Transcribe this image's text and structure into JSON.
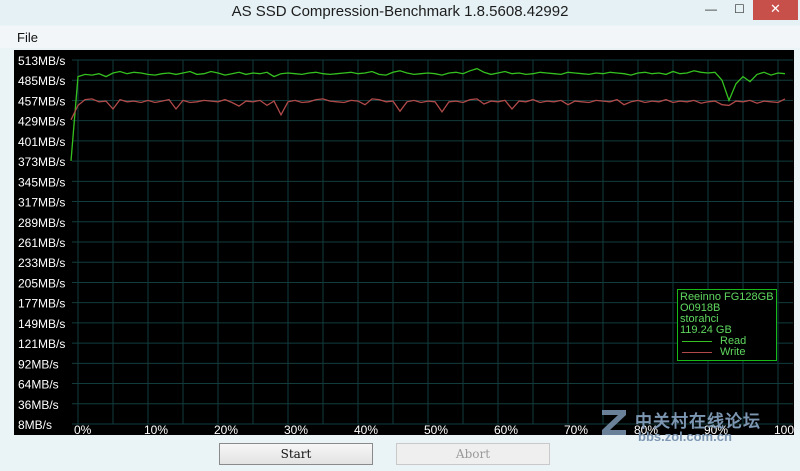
{
  "window": {
    "title": "AS SSD Compression-Benchmark 1.8.5608.42992",
    "controls": {
      "minimize": "—",
      "maximize": "☐",
      "close": "✕"
    }
  },
  "menu": {
    "file": "File"
  },
  "buttons": {
    "start": "Start",
    "abort": "Abort"
  },
  "info": {
    "model": "Reeinno FG128GB",
    "firmware": "O0918B",
    "driver": "storahci",
    "capacity": "119.24 GB",
    "legend_read": "Read",
    "legend_write": "Write"
  },
  "watermark": {
    "text": "中关村在线论坛",
    "url": "bbs.zol.com.cn"
  },
  "colors": {
    "read": "#34c11f",
    "write": "#b04a4a",
    "grid": "#123c3c",
    "axis_text": "#ffffff",
    "chart_bg": "#000000"
  },
  "chart_data": {
    "type": "line",
    "y_tick_labels": [
      "513MB/s",
      "485MB/s",
      "457MB/s",
      "429MB/s",
      "401MB/s",
      "373MB/s",
      "345MB/s",
      "317MB/s",
      "289MB/s",
      "261MB/s",
      "233MB/s",
      "205MB/s",
      "177MB/s",
      "149MB/s",
      "121MB/s",
      "92MB/s",
      "64MB/s",
      "36MB/s",
      "8MB/s"
    ],
    "x_tick_labels": [
      "0%",
      "10%",
      "20%",
      "30%",
      "40%",
      "50%",
      "60%",
      "70%",
      "80%",
      "90%",
      "100%"
    ],
    "ylim": [
      8,
      513
    ],
    "xlim": [
      0,
      100
    ],
    "grid": true,
    "legend_position": "bottom-right",
    "series": [
      {
        "name": "Read",
        "x": [
          -1,
          0,
          1,
          2,
          3,
          4,
          5,
          6,
          7,
          8,
          9,
          10,
          11,
          12,
          13,
          14,
          15,
          16,
          17,
          18,
          19,
          20,
          21,
          22,
          23,
          24,
          25,
          26,
          27,
          28,
          29,
          30,
          31,
          32,
          33,
          34,
          35,
          36,
          37,
          38,
          39,
          40,
          41,
          42,
          43,
          44,
          45,
          46,
          47,
          48,
          49,
          50,
          51,
          52,
          53,
          54,
          55,
          56,
          57,
          58,
          59,
          60,
          61,
          62,
          63,
          64,
          65,
          66,
          67,
          68,
          69,
          70,
          71,
          72,
          73,
          74,
          75,
          76,
          77,
          78,
          79,
          80,
          81,
          82,
          83,
          84,
          85,
          86,
          87,
          88,
          89,
          90,
          91,
          92,
          93,
          94,
          95,
          96,
          97,
          98,
          99,
          100,
          101
        ],
        "y": [
          373,
          490,
          493,
          492,
          494,
          490,
          495,
          497,
          494,
          496,
          495,
          493,
          492,
          494,
          495,
          493,
          495,
          497,
          493,
          494,
          497,
          495,
          492,
          494,
          496,
          493,
          495,
          494,
          496,
          490,
          494,
          495,
          494,
          493,
          495,
          496,
          494,
          493,
          494,
          495,
          496,
          494,
          495,
          497,
          493,
          492,
          496,
          498,
          495,
          493,
          494,
          495,
          494,
          492,
          495,
          496,
          494,
          498,
          501,
          496,
          493,
          495,
          497,
          494,
          495,
          493,
          494,
          496,
          495,
          494,
          493,
          496,
          495,
          494,
          493,
          495,
          494,
          496,
          495,
          494,
          492,
          495,
          496,
          494,
          495,
          493,
          497,
          494,
          495,
          498,
          496,
          495,
          496,
          485,
          457,
          480,
          490,
          483,
          493,
          496,
          492,
          495,
          494
        ]
      },
      {
        "name": "Write",
        "x": [
          -1,
          0,
          1,
          2,
          3,
          4,
          5,
          6,
          7,
          8,
          9,
          10,
          11,
          12,
          13,
          14,
          15,
          16,
          17,
          18,
          19,
          20,
          21,
          22,
          23,
          24,
          25,
          26,
          27,
          28,
          29,
          30,
          31,
          32,
          33,
          34,
          35,
          36,
          37,
          38,
          39,
          40,
          41,
          42,
          43,
          44,
          45,
          46,
          47,
          48,
          49,
          50,
          51,
          52,
          53,
          54,
          55,
          56,
          57,
          58,
          59,
          60,
          61,
          62,
          63,
          64,
          65,
          66,
          67,
          68,
          69,
          70,
          71,
          72,
          73,
          74,
          75,
          76,
          77,
          78,
          79,
          80,
          81,
          82,
          83,
          84,
          85,
          86,
          87,
          88,
          89,
          90,
          91,
          92,
          93,
          94,
          95,
          96,
          97,
          98,
          99,
          100,
          101
        ],
        "y": [
          430,
          450,
          458,
          459,
          455,
          456,
          445,
          458,
          455,
          456,
          454,
          457,
          454,
          456,
          458,
          445,
          457,
          454,
          455,
          457,
          456,
          455,
          458,
          454,
          449,
          456,
          455,
          457,
          450,
          456,
          437,
          455,
          457,
          454,
          455,
          458,
          459,
          456,
          455,
          454,
          457,
          456,
          451,
          459,
          458,
          455,
          456,
          442,
          455,
          457,
          454,
          456,
          455,
          441,
          455,
          456,
          454,
          458,
          459,
          452,
          456,
          455,
          457,
          445,
          456,
          455,
          458,
          454,
          456,
          455,
          457,
          451,
          456,
          455,
          454,
          457,
          456,
          455,
          458,
          451,
          455,
          457,
          454,
          456,
          455,
          458,
          454,
          456,
          455,
          457,
          453,
          455,
          456,
          451,
          450,
          456,
          455,
          457,
          453,
          456,
          455,
          454,
          459
        ]
      }
    ]
  }
}
